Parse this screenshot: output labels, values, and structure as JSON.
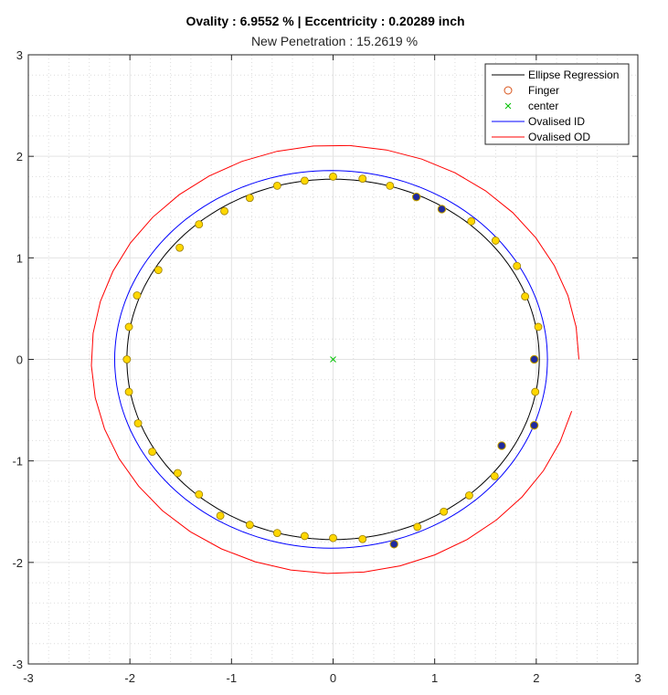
{
  "chart_data": {
    "type": "scatter",
    "title": "Ovality : 6.9552 %  |  Eccentricity : 0.20289 inch",
    "subtitle": "New Penetration : 15.2619 %",
    "xlabel": "",
    "ylabel": "",
    "xlim": [
      -3,
      3
    ],
    "ylim": [
      -3,
      3
    ],
    "xticks": [
      -3,
      -2,
      -1,
      0,
      1,
      2,
      3
    ],
    "yticks": [
      -3,
      -2,
      -1,
      0,
      1,
      2,
      3
    ],
    "grid": true,
    "minor_grid": true,
    "legend_location": "top-right",
    "series": [
      {
        "name": "Ellipse Regression",
        "kind": "ellipse",
        "color": "#000000",
        "center": [
          0,
          0
        ],
        "semi_axes": [
          2.03,
          1.775
        ]
      },
      {
        "name": "Finger",
        "kind": "points",
        "marker_edge": "#d95319",
        "points": [
          [
            0.0,
            1.8
          ],
          [
            0.29,
            1.78
          ],
          [
            0.56,
            1.71
          ],
          [
            0.82,
            1.6
          ],
          [
            1.07,
            1.48
          ],
          [
            1.36,
            1.36
          ],
          [
            1.6,
            1.17
          ],
          [
            1.81,
            0.92
          ],
          [
            1.89,
            0.62
          ],
          [
            2.02,
            0.32
          ],
          [
            1.98,
            0.0
          ],
          [
            1.99,
            -0.32
          ],
          [
            1.98,
            -0.65
          ],
          [
            1.66,
            -0.85
          ],
          [
            1.59,
            -1.15
          ],
          [
            1.34,
            -1.34
          ],
          [
            1.09,
            -1.5
          ],
          [
            0.83,
            -1.65
          ],
          [
            0.6,
            -1.82
          ],
          [
            0.29,
            -1.77
          ],
          [
            0.0,
            -1.76
          ],
          [
            -0.28,
            -1.74
          ],
          [
            -0.55,
            -1.71
          ],
          [
            -0.82,
            -1.63
          ],
          [
            -1.11,
            -1.54
          ],
          [
            -1.32,
            -1.33
          ],
          [
            -1.53,
            -1.12
          ],
          [
            -1.78,
            -0.91
          ],
          [
            -1.92,
            -0.63
          ],
          [
            -2.01,
            -0.32
          ],
          [
            -2.03,
            0.0
          ],
          [
            -2.01,
            0.32
          ],
          [
            -1.93,
            0.63
          ],
          [
            -1.72,
            0.88
          ],
          [
            -1.51,
            1.1
          ],
          [
            -1.32,
            1.33
          ],
          [
            -1.07,
            1.46
          ],
          [
            -0.82,
            1.59
          ],
          [
            -0.55,
            1.71
          ],
          [
            -0.28,
            1.76
          ]
        ],
        "outlier_points": [
          [
            0.82,
            1.6
          ],
          [
            1.07,
            1.48
          ],
          [
            1.98,
            0.0
          ],
          [
            1.98,
            -0.65
          ],
          [
            1.66,
            -0.85
          ],
          [
            0.6,
            -1.82
          ]
        ],
        "fill_normal": "#ffd700",
        "fill_outlier": "#1f2a9e"
      },
      {
        "name": "center",
        "kind": "point",
        "color": "#00c000",
        "point": [
          0,
          0
        ]
      },
      {
        "name": "Ovalised ID",
        "kind": "ellipse",
        "color": "#0000ff",
        "center": [
          -0.02,
          0
        ],
        "semi_axes": [
          2.13,
          1.86
        ]
      },
      {
        "name": "Ovalised OD",
        "kind": "arc",
        "color": "#ff0000",
        "center": [
          0.02,
          0
        ],
        "semi_axes": [
          2.4,
          2.11
        ],
        "start_deg": 0,
        "end_deg": 346,
        "segments": 40
      }
    ]
  }
}
